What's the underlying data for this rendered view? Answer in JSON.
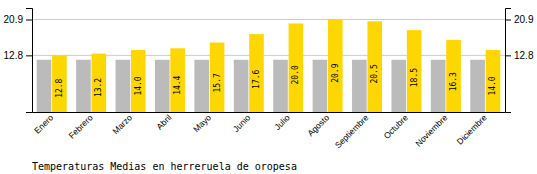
{
  "chart_data": {
    "type": "bar",
    "title": "Temperaturas Medias en herreruela de oropesa",
    "categories": [
      "Enero",
      "Febrero",
      "Marzo",
      "Abril",
      "Mayo",
      "Junio",
      "Julio",
      "Agosto",
      "Septiembre",
      "Octubre",
      "Noviembre",
      "Diciembre"
    ],
    "series": [
      {
        "color": "#BBBBBB",
        "values": [
          11.8,
          11.8,
          11.8,
          11.8,
          11.8,
          11.8,
          11.8,
          11.8,
          11.8,
          11.8,
          11.8,
          11.8
        ]
      },
      {
        "color": "#FFD700",
        "values": [
          12.8,
          13.2,
          14.0,
          14.4,
          15.7,
          17.6,
          20.0,
          20.9,
          20.5,
          18.5,
          16.3,
          14.0
        ],
        "value_labels": [
          "12.8",
          "13.2",
          "14.0",
          "14.4",
          "15.7",
          "17.6",
          "20.0",
          "20.9",
          "20.5",
          "18.5",
          "16.3",
          "14.0"
        ],
        "data_labels": true
      }
    ],
    "ylim": [
      0,
      23.5
    ],
    "yticks": [
      12.8,
      20.9
    ],
    "y2lim": [
      0,
      23.5
    ],
    "y2ticks": [
      12.8,
      20.9
    ],
    "grid": true
  }
}
